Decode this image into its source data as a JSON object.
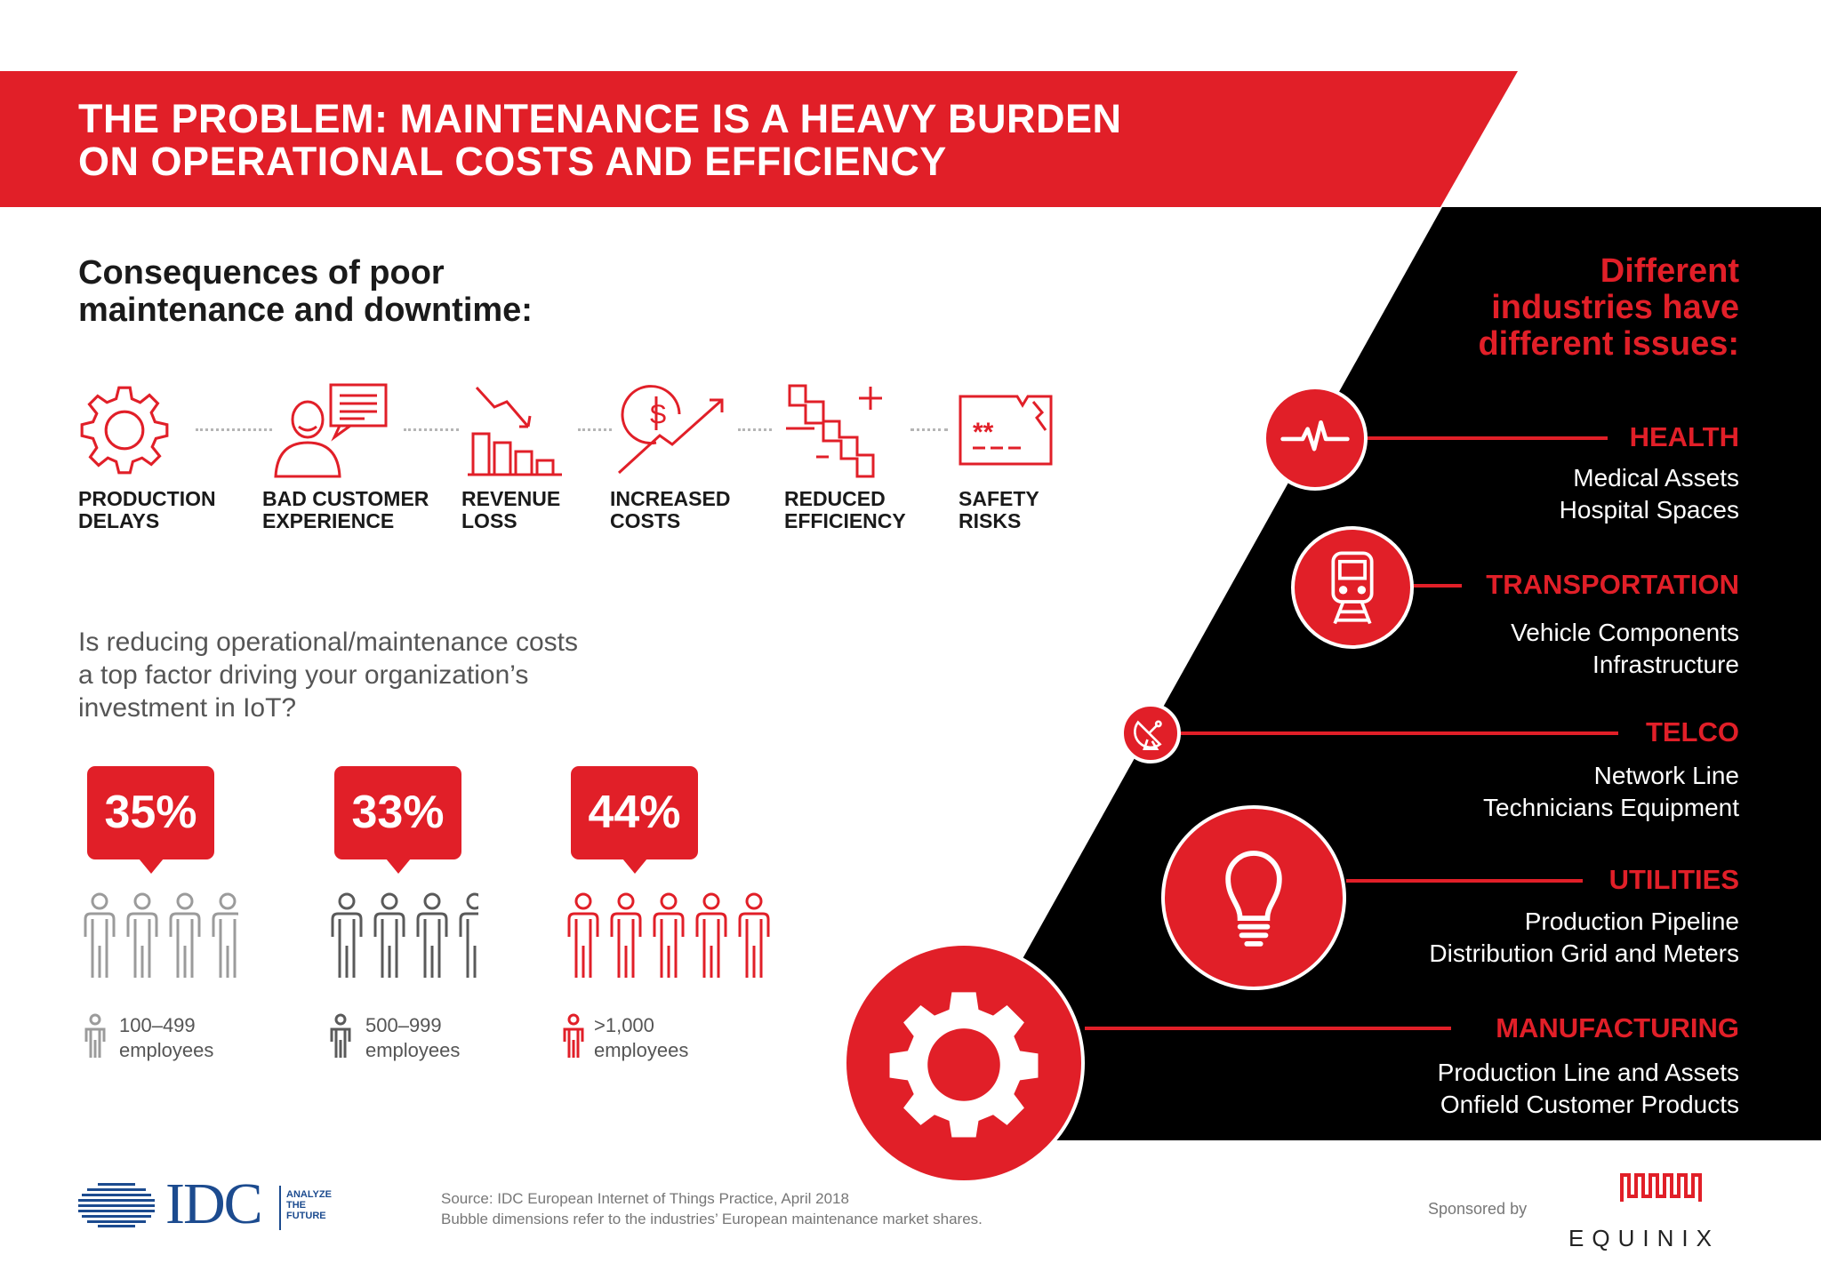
{
  "header": {
    "title_line1": "THE PROBLEM: MAINTENANCE IS A HEAVY BURDEN",
    "title_line2": "ON OPERATIONAL COSTS AND EFFICIENCY"
  },
  "consequences": {
    "heading_line1": "Consequences of poor",
    "heading_line2": "maintenance and downtime:",
    "items": [
      {
        "line1": "PRODUCTION",
        "line2": "DELAYS",
        "icon": "gear-icon"
      },
      {
        "line1": "BAD CUSTOMER",
        "line2": "EXPERIENCE",
        "icon": "customer-chat-icon"
      },
      {
        "line1": "REVENUE",
        "line2": "LOSS",
        "icon": "declining-bars-icon"
      },
      {
        "line1": "INCREASED",
        "line2": "COSTS",
        "icon": "rising-cost-icon"
      },
      {
        "line1": "REDUCED",
        "line2": "EFFICIENCY",
        "icon": "plus-minus-bars-icon"
      },
      {
        "line1": "SAFETY",
        "line2": "RISKS",
        "icon": "warning-card-icon"
      }
    ]
  },
  "survey": {
    "question_line1": "Is reducing operational/maintenance costs",
    "question_line2": "a top factor driving your organization’s",
    "question_line3": "investment in IoT?",
    "groups": [
      {
        "percent": "35%",
        "size_line1": "100–499",
        "size_line2": "employees",
        "color": "#9b9b9b"
      },
      {
        "percent": "33%",
        "size_line1": "500–999",
        "size_line2": "employees",
        "color": "#5a5a5a"
      },
      {
        "percent": "44%",
        "size_line1": ">1,000",
        "size_line2": "employees",
        "color": "#e11f28"
      }
    ]
  },
  "industries": {
    "heading_line1": "Different",
    "heading_line2": "industries have",
    "heading_line3": "different issues:",
    "items": [
      {
        "name": "HEALTH",
        "line1": "Medical Assets",
        "line2": "Hospital Spaces",
        "icon": "heartbeat-icon"
      },
      {
        "name": "TRANSPORTATION",
        "line1": "Vehicle Components",
        "line2": "Infrastructure",
        "icon": "train-icon"
      },
      {
        "name": "TELCO",
        "line1": "Network Line",
        "line2": "Technicians Equipment",
        "icon": "satellite-dish-icon"
      },
      {
        "name": "UTILITIES",
        "line1": "Production Pipeline",
        "line2": "Distribution Grid and Meters",
        "icon": "lightbulb-icon"
      },
      {
        "name": "MANUFACTURING",
        "line1": "Production Line and Assets",
        "line2": "Onfield Customer Products",
        "icon": "gear-icon"
      }
    ]
  },
  "footer": {
    "idc_logo": "IDC",
    "idc_tag1": "ANALYZE",
    "idc_tag2": "THE",
    "idc_tag3": "FUTURE",
    "source_line1": "Source: IDC European Internet of Things Practice, April 2018",
    "source_line2": "Bubble dimensions refer to the industries’ European maintenance market shares.",
    "sponsored_label": "Sponsored by",
    "sponsor_name": "EQUINIX"
  },
  "colors": {
    "accent": "#e11f28",
    "dark": "#000000",
    "grey": "#9b9b9b"
  }
}
